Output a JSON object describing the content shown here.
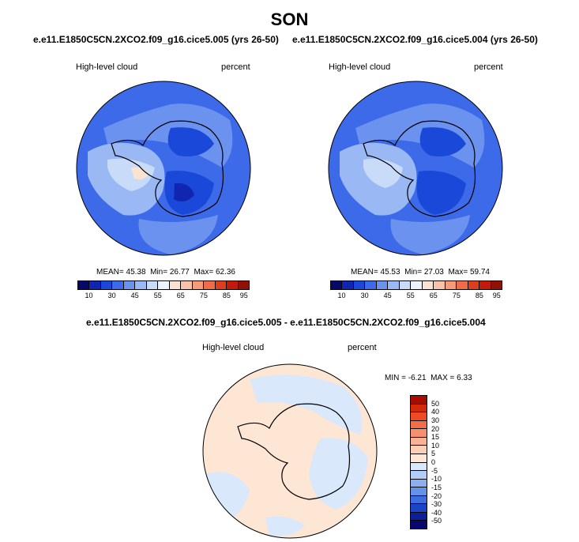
{
  "title": "SON",
  "panel1": {
    "case": "e.e11.E1850C5CN.2XCO2.f09_g16.cice5.005 (yrs 26-50)",
    "variable": "High-level cloud",
    "units": "percent",
    "mean_label": "MEAN=",
    "mean": "45.38",
    "min_label": "Min=",
    "min": "26.77",
    "max_label": "Max=",
    "max": "62.36"
  },
  "panel2": {
    "case": "e.e11.E1850C5CN.2XCO2.f09_g16.cice5.004 (yrs 26-50)",
    "variable": "High-level cloud",
    "units": "percent",
    "mean_label": "MEAN=",
    "mean": "45.53",
    "min_label": "Min=",
    "min": "27.03",
    "max_label": "Max=",
    "max": "59.74"
  },
  "diff": {
    "case": "e.e11.E1850C5CN.2XCO2.f09_g16.cice5.005 - e.e11.E1850C5CN.2XCO2.f09_g16.cice5.004",
    "variable": "High-level cloud",
    "units": "percent",
    "min_label": "MIN =",
    "min": "-6.21",
    "max_label": "MAX =",
    "max": "6.33"
  },
  "colorbar": {
    "labels": [
      "10",
      "30",
      "45",
      "55",
      "65",
      "75",
      "85",
      "95"
    ],
    "colors": [
      "#08086b",
      "#1026b0",
      "#1a48d8",
      "#3d6ae8",
      "#6a92ee",
      "#99b8f4",
      "#c8dcfa",
      "#eef3fb",
      "#fbe3d2",
      "#f8c3a6",
      "#f39c77",
      "#ec6d48",
      "#df3d1d",
      "#c31b0b",
      "#931006"
    ]
  },
  "diff_colorbar": {
    "labels": [
      "50",
      "40",
      "30",
      "20",
      "15",
      "10",
      "5",
      "0",
      "-5",
      "-10",
      "-15",
      "-20",
      "-30",
      "-40",
      "-50"
    ],
    "colors": [
      "#a80c00",
      "#d42a0a",
      "#ef4a21",
      "#f56d47",
      "#f7906d",
      "#f9b294",
      "#fbcfb6",
      "#fde6d4",
      "#d9e8fb",
      "#b2cdf6",
      "#8bb0f0",
      "#6592ea",
      "#3d6ee0",
      "#1a45c8",
      "#0b1f98",
      "#06086b"
    ]
  },
  "ocean_color": "#3d6ae8",
  "coast_color": "#000000"
}
